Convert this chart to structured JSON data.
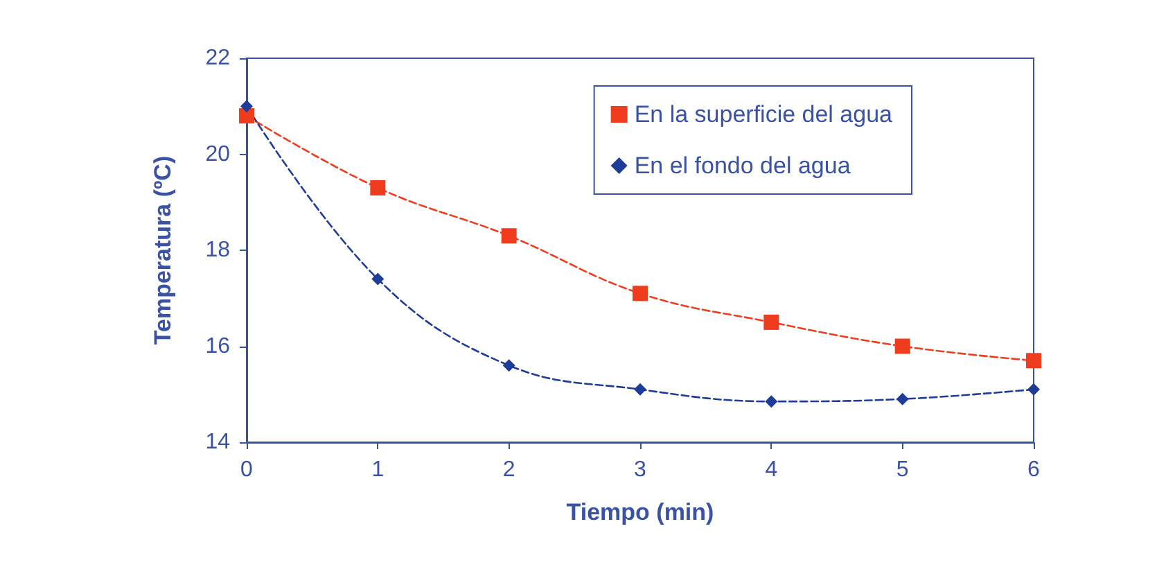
{
  "chart_data": {
    "type": "line",
    "xlabel": "Tiempo (min)",
    "ylabel": "Temperatura (ºC)",
    "x": [
      0,
      1,
      2,
      3,
      4,
      5,
      6
    ],
    "series": [
      {
        "name": "En la superficie del agua",
        "color": "#f03c1e",
        "marker": "square",
        "values": [
          20.8,
          19.3,
          18.3,
          17.1,
          16.5,
          16.0,
          15.7
        ]
      },
      {
        "name": "En el fondo del agua",
        "color": "#1f3c99",
        "marker": "diamond",
        "values": [
          21.0,
          17.4,
          15.6,
          15.1,
          14.85,
          14.9,
          15.1
        ]
      }
    ],
    "xlim": [
      0,
      6
    ],
    "xticks": [
      0,
      1,
      2,
      3,
      4,
      5,
      6
    ],
    "ylim": [
      14,
      22
    ],
    "yticks": [
      14,
      16,
      18,
      20,
      22
    ],
    "grid": false,
    "legend": "top right",
    "line_style": "dashed"
  }
}
